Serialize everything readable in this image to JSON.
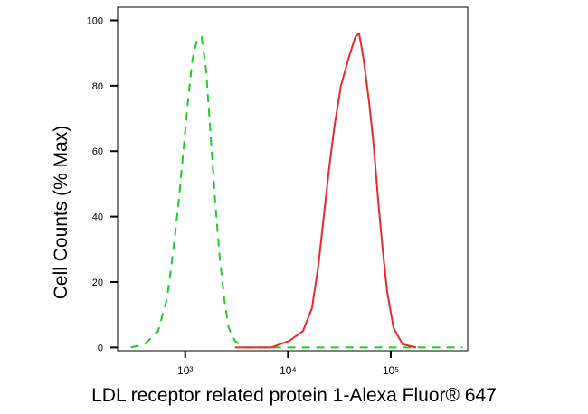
{
  "chart_data": {
    "type": "line",
    "xlabel": "LDL receptor related protein 1-Alexa Fluor® 647",
    "ylabel": "Cell Counts (% Max)",
    "xscale": "log",
    "xlim": [
      220,
      560000
    ],
    "ylim": [
      -1,
      104
    ],
    "xticks": [
      {
        "value": 1000,
        "label": "10³"
      },
      {
        "value": 10000,
        "label": "10⁴"
      },
      {
        "value": 100000,
        "label": "10⁵"
      }
    ],
    "yticks": [
      0,
      20,
      40,
      60,
      80,
      100
    ],
    "series": [
      {
        "color": "#22cc22",
        "linestyle": "dashed",
        "x": [
          296,
          402,
          545,
          667,
          768,
          867,
          960,
          1062,
          1176,
          1303,
          1441,
          1595,
          1765,
          1953,
          2161,
          2392,
          2649,
          3052,
          3737,
          500000
        ],
        "values": [
          0,
          1,
          5,
          15,
          30,
          45,
          60,
          75,
          88,
          94,
          95,
          85,
          65,
          45,
          28,
          15,
          6,
          2,
          0,
          0
        ]
      },
      {
        "color": "#e8282a",
        "linestyle": "solid",
        "x": [
          3052,
          6871,
          10300,
          13970,
          17100,
          19720,
          22280,
          25170,
          28430,
          32740,
          38550,
          45300,
          49200,
          54460,
          61500,
          68080,
          75350,
          83400,
          92300,
          106200,
          130300,
          176600
        ],
        "values": [
          0,
          0,
          2,
          5,
          12,
          25,
          40,
          55,
          68,
          80,
          88,
          95,
          96,
          88,
          75,
          62,
          45,
          30,
          17,
          6,
          1,
          0
        ]
      }
    ]
  }
}
